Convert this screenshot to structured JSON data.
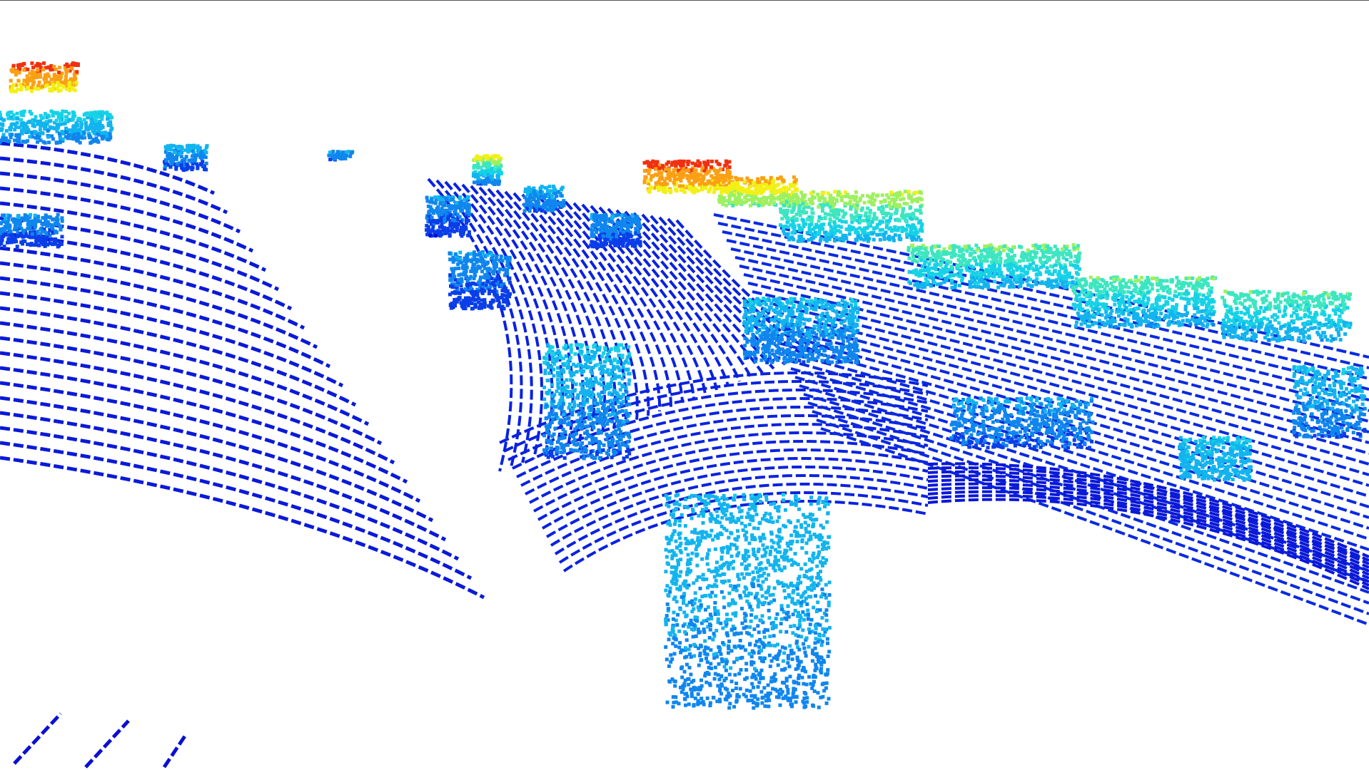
{
  "viewer": {
    "background": "#ffffff",
    "border_color": "#555555",
    "colormap": "jet",
    "colormap_stops": [
      "#0010d8",
      "#0a3ee8",
      "#0f86ee",
      "#12b4ee",
      "#16d2e6",
      "#3ce6c0",
      "#9ef060",
      "#f2f014",
      "#fba014",
      "#f03010",
      "#e01000"
    ]
  }
}
